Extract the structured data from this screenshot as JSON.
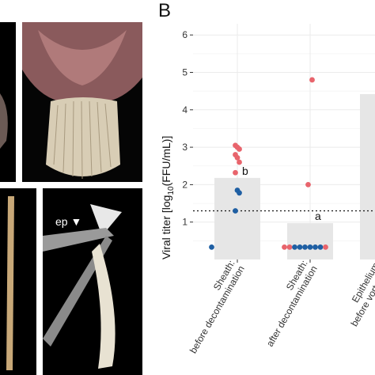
{
  "panel_letter": "B",
  "photo_annotation": "ep",
  "chart_data": {
    "type": "bar",
    "ylabel_prefix": "Viral titer [log",
    "ylabel_sub": "10",
    "ylabel_suffix": "(FFU/mL)]",
    "ylim": [
      0,
      6.3
    ],
    "yticks": [
      "1",
      "2",
      "3",
      "4",
      "5",
      "6"
    ],
    "grid": true,
    "detection_limit": 1.3,
    "categories": [
      {
        "line1": "Sheath:",
        "line2": "before decontamination"
      },
      {
        "line1": "Sheath:",
        "line2": "after decontamination"
      },
      {
        "line1": "Epithelium:",
        "line2": "before vortexing"
      }
    ],
    "values": [
      2.18,
      0.97,
      4.42
    ],
    "significance": [
      "b",
      "a",
      ""
    ],
    "points": [
      {
        "category": 0,
        "y": 3.05,
        "group": "red"
      },
      {
        "category": 0,
        "y": 3.0,
        "group": "red"
      },
      {
        "category": 0,
        "y": 2.95,
        "group": "red"
      },
      {
        "category": 0,
        "y": 2.8,
        "group": "red"
      },
      {
        "category": 0,
        "y": 2.72,
        "group": "red"
      },
      {
        "category": 0,
        "y": 2.6,
        "group": "red"
      },
      {
        "category": 0,
        "y": 2.32,
        "group": "red"
      },
      {
        "category": 0,
        "y": 1.85,
        "group": "blue"
      },
      {
        "category": 0,
        "y": 1.78,
        "group": "blue"
      },
      {
        "category": 0,
        "y": 1.3,
        "group": "blue"
      },
      {
        "category": 0,
        "y": 0.33,
        "group": "blue"
      },
      {
        "category": 1,
        "y": 4.8,
        "group": "red"
      },
      {
        "category": 1,
        "y": 2.0,
        "group": "red"
      },
      {
        "category": 1,
        "y": 0.33,
        "group": "red"
      },
      {
        "category": 1,
        "y": 0.33,
        "group": "red"
      },
      {
        "category": 1,
        "y": 0.33,
        "group": "blue"
      },
      {
        "category": 1,
        "y": 0.33,
        "group": "blue"
      },
      {
        "category": 1,
        "y": 0.33,
        "group": "blue"
      },
      {
        "category": 1,
        "y": 0.33,
        "group": "blue"
      },
      {
        "category": 1,
        "y": 0.33,
        "group": "blue"
      },
      {
        "category": 1,
        "y": 0.33,
        "group": "blue"
      },
      {
        "category": 1,
        "y": 0.33,
        "group": "red"
      }
    ],
    "colors": {
      "red": "#e8646c",
      "blue": "#1f5fa3",
      "bar": "#e6e6e6",
      "grid": "#ebebeb"
    }
  }
}
